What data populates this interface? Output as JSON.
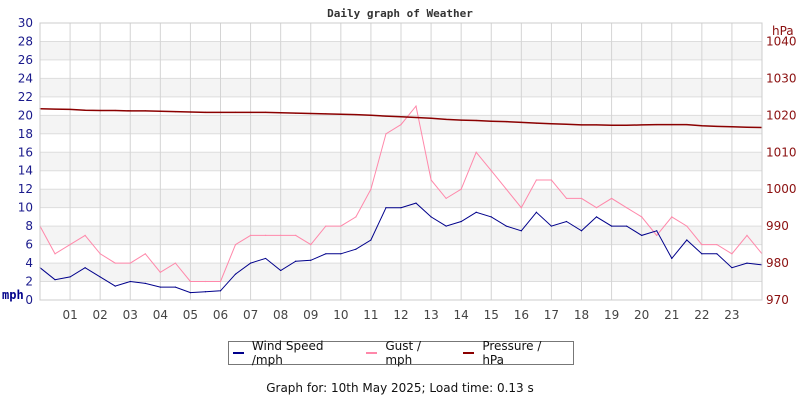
{
  "chart_data": {
    "type": "line",
    "title": "Daily graph of Weather",
    "ylabel": "mph",
    "y2label": "hPa",
    "ylim": [
      0,
      30
    ],
    "y2lim": [
      970,
      1045
    ],
    "yticks": [
      "0",
      "2",
      "4",
      "6",
      "8",
      "10",
      "12",
      "14",
      "16",
      "18",
      "20",
      "22",
      "24",
      "26",
      "28",
      "30"
    ],
    "y2ticks": [
      "970",
      "980",
      "990",
      "1000",
      "1010",
      "1020",
      "1030",
      "1040"
    ],
    "xlim": [
      0,
      24
    ],
    "xticks": [
      "01",
      "02",
      "03",
      "04",
      "05",
      "06",
      "07",
      "08",
      "09",
      "10",
      "11",
      "12",
      "13",
      "14",
      "15",
      "16",
      "17",
      "18",
      "19",
      "20",
      "21",
      "22",
      "23"
    ],
    "grid": true,
    "legend_position": "bottom",
    "x": [
      0,
      0.5,
      1,
      1.5,
      2,
      2.5,
      3,
      3.5,
      4,
      4.5,
      5,
      5.5,
      6,
      6.5,
      7,
      7.5,
      8,
      8.5,
      9,
      9.5,
      10,
      10.5,
      11,
      11.5,
      12,
      12.5,
      13,
      13.5,
      14,
      14.5,
      15,
      15.5,
      16,
      16.5,
      17,
      17.5,
      18,
      18.5,
      19,
      19.5,
      20,
      20.5,
      21,
      21.5,
      22,
      22.5,
      23,
      23.5,
      24
    ],
    "series": [
      {
        "name": "Wind Speed /mph",
        "color": "#00008b",
        "axis": "left",
        "values": [
          3.5,
          2.2,
          2.5,
          3.5,
          2.5,
          1.5,
          2.0,
          1.8,
          1.4,
          1.4,
          0.8,
          0.9,
          1.0,
          2.8,
          4.0,
          4.5,
          3.2,
          4.2,
          4.3,
          5.0,
          5.0,
          5.5,
          6.5,
          10.0,
          10.0,
          10.5,
          9.0,
          8.0,
          8.5,
          9.5,
          9.0,
          8.0,
          7.5,
          9.5,
          8.0,
          8.5,
          7.5,
          9.0,
          8.0,
          8.0,
          7.0,
          7.5,
          4.5,
          6.5,
          5.0,
          5.0,
          3.5,
          4.0,
          3.8
        ]
      },
      {
        "name": "Gust / mph",
        "color": "#ff88aa",
        "axis": "left",
        "values": [
          8,
          5,
          6,
          7,
          5,
          4,
          4,
          5,
          3,
          4,
          2,
          2,
          2,
          6,
          7,
          7,
          7,
          7,
          6,
          8,
          8,
          9,
          12,
          18,
          19,
          21,
          13,
          11,
          12,
          16,
          14,
          12,
          10,
          13,
          13,
          11,
          11,
          10,
          11,
          10,
          9,
          7,
          9,
          8,
          6,
          6,
          5,
          7,
          5
        ]
      },
      {
        "name": "Pressure / hPa",
        "color": "#8b0000",
        "axis": "right",
        "values": [
          1021.8,
          1021.7,
          1021.6,
          1021.4,
          1021.3,
          1021.3,
          1021.2,
          1021.2,
          1021.1,
          1021.0,
          1020.9,
          1020.8,
          1020.8,
          1020.8,
          1020.8,
          1020.8,
          1020.7,
          1020.6,
          1020.5,
          1020.4,
          1020.3,
          1020.2,
          1020.0,
          1019.8,
          1019.6,
          1019.4,
          1019.2,
          1018.9,
          1018.7,
          1018.6,
          1018.4,
          1018.3,
          1018.1,
          1017.9,
          1017.7,
          1017.6,
          1017.4,
          1017.4,
          1017.3,
          1017.3,
          1017.4,
          1017.5,
          1017.5,
          1017.5,
          1017.2,
          1017.0,
          1016.9,
          1016.8,
          1016.7
        ]
      }
    ]
  },
  "legend": [
    {
      "label": "Wind Speed /mph",
      "color": "#00008b"
    },
    {
      "label": "Gust / mph",
      "color": "#ff88aa"
    },
    {
      "label": "Pressure / hPa",
      "color": "#8b0000"
    }
  ],
  "footer": "Graph for: 10th May 2025; Load time: 0.13 s"
}
